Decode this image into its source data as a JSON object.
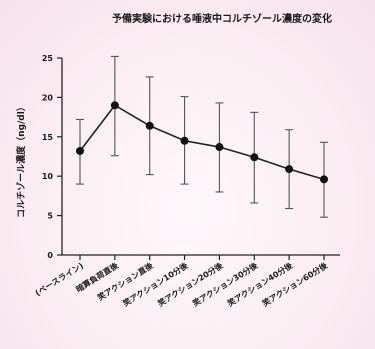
{
  "chart_data": {
    "type": "line",
    "title": "予備実験における唾液中コルチゾール濃度の変化",
    "xlabel": "",
    "ylabel": "コルチゾール濃度（ng/dl）",
    "ylim": [
      0,
      25
    ],
    "yticks": [
      0,
      5,
      10,
      15,
      20,
      25
    ],
    "grid": false,
    "categories": [
      "(ベースライン)",
      "暗算負荷直後",
      "笑アクション直後",
      "笑アクション10分後",
      "笑アクション20分後",
      "笑アクション30分後",
      "笑アクション40分後",
      "笑アクション60分後"
    ],
    "series": [
      {
        "values": [
          13.2,
          19.0,
          16.4,
          14.5,
          13.7,
          12.4,
          10.9,
          9.6
        ],
        "err_low": [
          9.0,
          12.6,
          10.2,
          9.0,
          8.0,
          6.6,
          5.9,
          4.8
        ],
        "err_high": [
          17.2,
          25.2,
          22.6,
          20.1,
          19.3,
          18.1,
          15.9,
          14.3
        ]
      }
    ],
    "colors": {
      "line": "#222222",
      "errorbar": "#555555"
    }
  }
}
